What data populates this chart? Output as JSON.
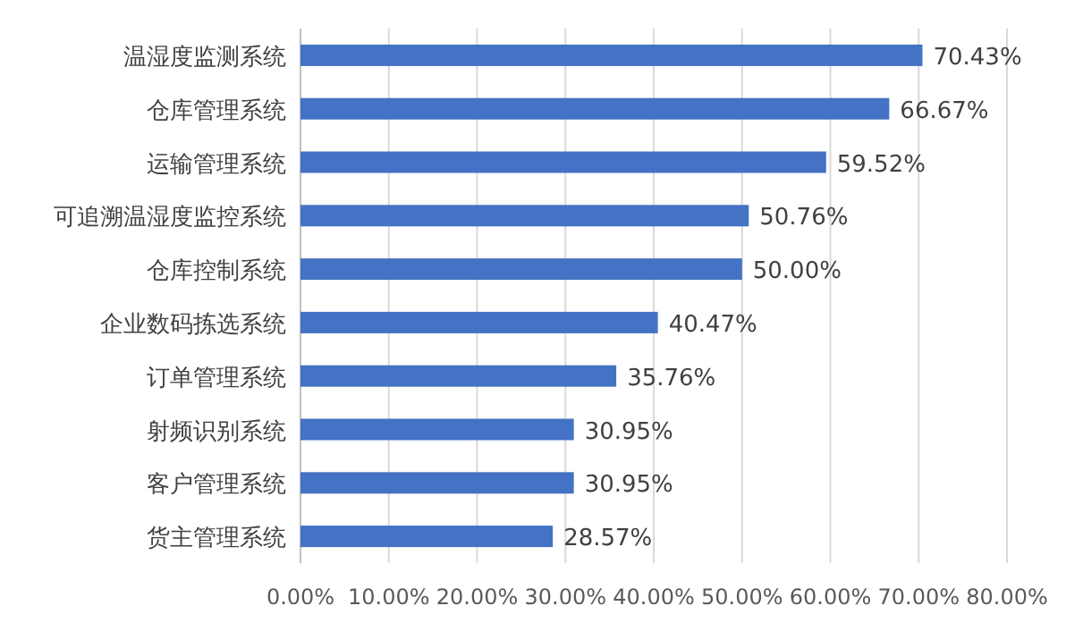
{
  "chart_data": {
    "type": "bar",
    "orientation": "horizontal",
    "categories": [
      "温湿度监测系统",
      "仓库管理系统",
      "运输管理系统",
      "可追溯温湿度监控系统",
      "仓库控制系统",
      "企业数码拣选系统",
      "订单管理系统",
      "射频识别系统",
      "客户管理系统",
      "货主管理系统"
    ],
    "values": [
      70.43,
      66.67,
      59.52,
      50.76,
      50.0,
      40.47,
      35.76,
      30.95,
      30.95,
      28.57
    ],
    "value_labels": [
      "70.43%",
      "66.67%",
      "59.52%",
      "50.76%",
      "50.00%",
      "40.47%",
      "35.76%",
      "30.95%",
      "30.95%",
      "28.57%"
    ],
    "color": "#4472c4",
    "xlim": [
      0,
      80
    ],
    "xticks": [
      {
        "value": 0,
        "label": "0.00%"
      },
      {
        "value": 10,
        "label": "10.00%"
      },
      {
        "value": 20,
        "label": "20.00%"
      },
      {
        "value": 30,
        "label": "30.00%"
      },
      {
        "value": 40,
        "label": "40.00%"
      },
      {
        "value": 50,
        "label": "50.00%"
      },
      {
        "value": 60,
        "label": "60.00%"
      },
      {
        "value": 70,
        "label": "70.00%"
      },
      {
        "value": 80,
        "label": "80.00%"
      }
    ],
    "grid": "x"
  }
}
